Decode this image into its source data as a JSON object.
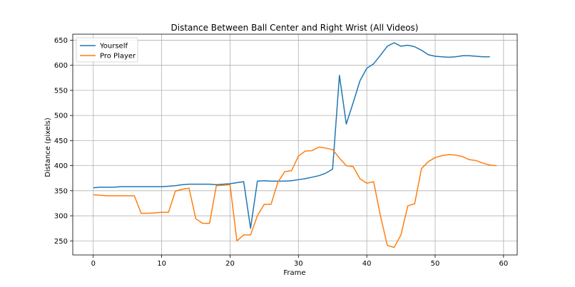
{
  "chart_data": {
    "type": "line",
    "title": "Distance Between Ball Center and Right Wrist (All Videos)",
    "xlabel": "Frame",
    "ylabel": "Distance (pixels)",
    "xlim": [
      -3,
      62
    ],
    "ylim": [
      222,
      662
    ],
    "xticks": [
      0,
      10,
      20,
      30,
      40,
      50,
      60
    ],
    "yticks": [
      250,
      300,
      350,
      400,
      450,
      500,
      550,
      600,
      650
    ],
    "grid": true,
    "legend": "top-left",
    "series": [
      {
        "name": "Yourself",
        "color": "#1f77b4",
        "x": [
          0,
          1,
          2,
          3,
          4,
          5,
          6,
          7,
          8,
          9,
          10,
          11,
          12,
          13,
          14,
          15,
          16,
          17,
          18,
          19,
          20,
          21,
          22,
          23,
          24,
          25,
          26,
          27,
          28,
          29,
          30,
          31,
          32,
          33,
          34,
          35,
          36,
          37,
          38,
          39,
          40,
          41,
          42,
          43,
          44,
          45,
          46,
          47,
          48,
          49,
          50,
          51,
          52,
          53,
          54,
          55,
          56,
          57,
          58
        ],
        "values": [
          356,
          357,
          357,
          357,
          358,
          358,
          358,
          358,
          358,
          358,
          358,
          359,
          360,
          362,
          363,
          363,
          363,
          363,
          362,
          363,
          364,
          366,
          368,
          275,
          369,
          370,
          369,
          369,
          369,
          370,
          372,
          374,
          377,
          380,
          385,
          393,
          580,
          483,
          525,
          569,
          594,
          603,
          620,
          638,
          645,
          638,
          640,
          637,
          630,
          621,
          618,
          617,
          616,
          617,
          619,
          619,
          618,
          617,
          617
        ]
      },
      {
        "name": "Pro Player",
        "color": "#ff7f0e",
        "x": [
          0,
          1,
          2,
          3,
          4,
          5,
          6,
          7,
          8,
          9,
          10,
          11,
          12,
          13,
          14,
          15,
          16,
          17,
          18,
          19,
          20,
          21,
          22,
          23,
          24,
          25,
          26,
          27,
          28,
          29,
          30,
          31,
          32,
          33,
          34,
          35,
          36,
          37,
          38,
          39,
          40,
          41,
          42,
          43,
          44,
          45,
          46,
          47,
          48,
          49,
          50,
          51,
          52,
          53,
          54,
          55,
          56,
          57,
          58,
          59
        ],
        "values": [
          342,
          341,
          340,
          340,
          340,
          340,
          340,
          305,
          305,
          306,
          307,
          307,
          349,
          353,
          355,
          294,
          285,
          285,
          360,
          361,
          362,
          250,
          262,
          262,
          300,
          323,
          323,
          367,
          388,
          390,
          419,
          429,
          430,
          437,
          435,
          432,
          415,
          400,
          398,
          374,
          365,
          368,
          300,
          241,
          237,
          262,
          320,
          324,
          394,
          408,
          416,
          420,
          422,
          421,
          418,
          412,
          410,
          405,
          401,
          400
        ]
      }
    ]
  }
}
